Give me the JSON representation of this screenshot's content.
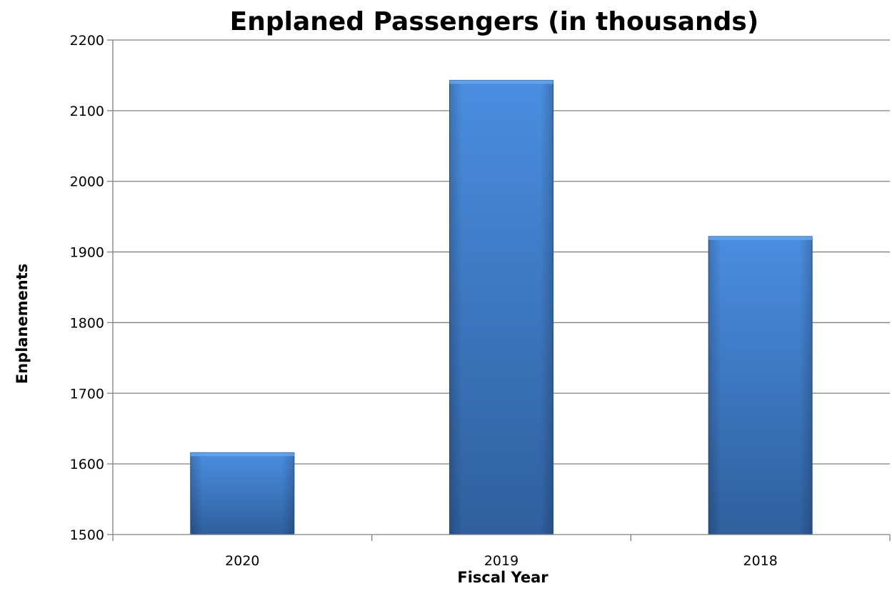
{
  "chart_data": {
    "type": "bar",
    "title": "Enplaned Passengers (in thousands)",
    "xlabel": "Fiscal Year",
    "ylabel": "Enplanements",
    "categories": [
      "2020",
      "2019",
      "2018"
    ],
    "values": [
      1616,
      2143,
      1922
    ],
    "ylim": [
      1500,
      2200
    ],
    "yticks": [
      1500,
      1600,
      1700,
      1800,
      1900,
      2000,
      2100,
      2200
    ],
    "grid": true,
    "legend": "none",
    "colors": {
      "bar": "#3f7fd0",
      "bar_light": "#4a8ee0",
      "bar_dark": "#2f5f9e",
      "grid": "#808080",
      "axis": "#808080"
    }
  }
}
